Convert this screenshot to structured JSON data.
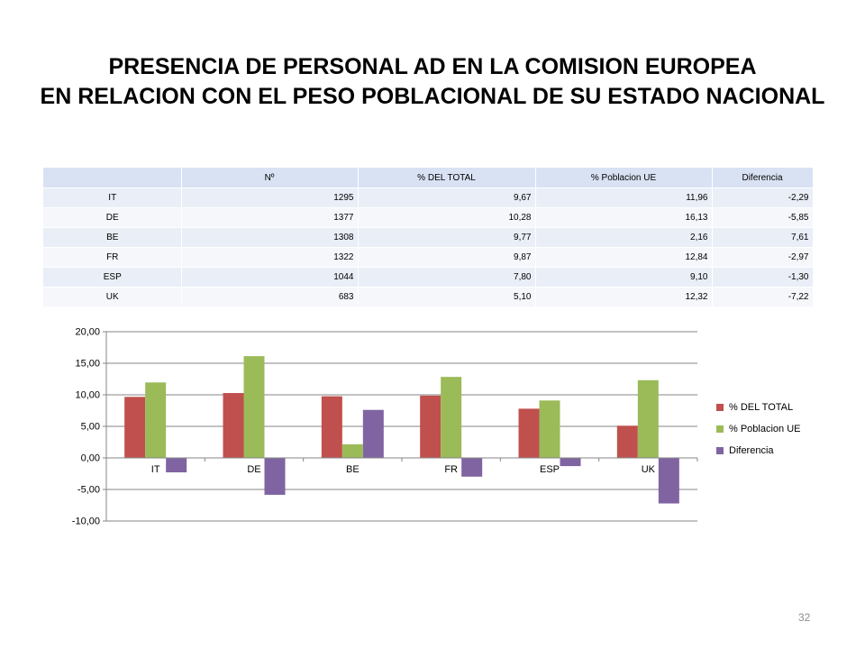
{
  "title": {
    "line1": "PRESENCIA DE PERSONAL AD EN LA COMISION EUROPEA",
    "line2": "EN RELACION CON EL PESO POBLACIONAL DE SU ESTADO NACIONAL"
  },
  "table": {
    "headers": [
      "",
      "Nº",
      "% DEL TOTAL",
      "% Poblacion UE",
      "Diferencia"
    ],
    "rows": [
      [
        "IT",
        "1295",
        "9,67",
        "11,96",
        "-2,29"
      ],
      [
        "DE",
        "1377",
        "10,28",
        "16,13",
        "-5,85"
      ],
      [
        "BE",
        "1308",
        "9,77",
        "2,16",
        "7,61"
      ],
      [
        "FR",
        "1322",
        "9,87",
        "12,84",
        "-2,97"
      ],
      [
        "ESP",
        "1044",
        "7,80",
        "9,10",
        "-1,30"
      ],
      [
        "UK",
        "683",
        "5,10",
        "12,32",
        "-7,22"
      ]
    ]
  },
  "chart_data": {
    "type": "bar",
    "categories": [
      "IT",
      "DE",
      "BE",
      "FR",
      "ESP",
      "UK"
    ],
    "series": [
      {
        "name": "% DEL TOTAL",
        "values": [
          9.67,
          10.28,
          9.77,
          9.87,
          7.8,
          5.1
        ],
        "color": "#c0504d"
      },
      {
        "name": "% Poblacion UE",
        "values": [
          11.96,
          16.13,
          2.16,
          12.84,
          9.1,
          12.32
        ],
        "color": "#9bbb59"
      },
      {
        "name": "Diferencia",
        "values": [
          -2.29,
          -5.85,
          7.61,
          -2.97,
          -1.3,
          -7.22
        ],
        "color": "#8064a2"
      }
    ],
    "ylim": [
      -10,
      20
    ],
    "yticks": [
      "-10,00",
      "-5,00",
      "0,00",
      "5,00",
      "10,00",
      "15,00",
      "20,00"
    ],
    "grid": true,
    "legend": "right"
  },
  "page_number": "32"
}
